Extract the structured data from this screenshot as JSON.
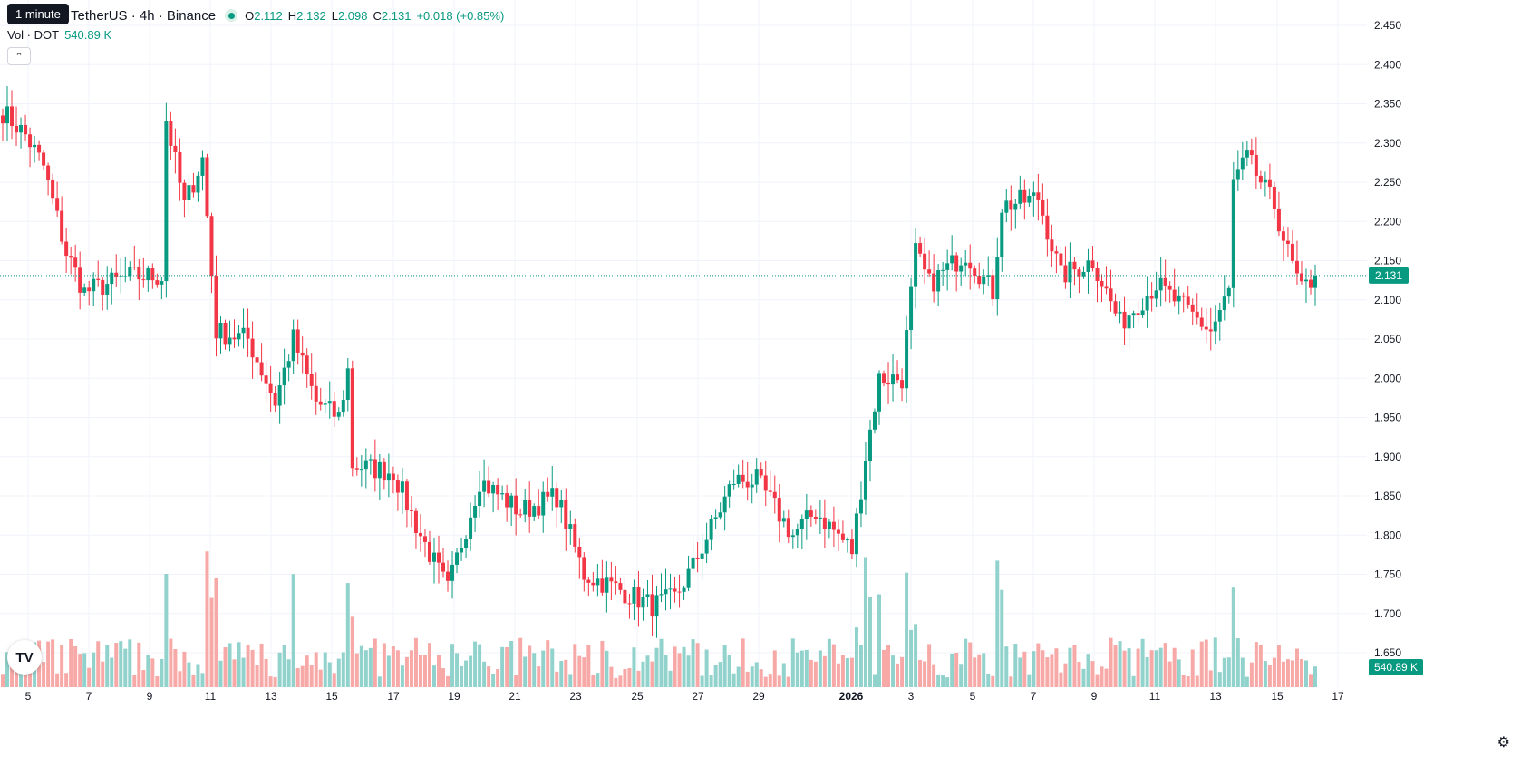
{
  "tooltip": "1 minute",
  "header": {
    "symbol_text": "TetherUS · 4h · Binance",
    "ohlc": [
      {
        "k": "O",
        "v": "2.112"
      },
      {
        "k": "H",
        "v": "2.132"
      },
      {
        "k": "L",
        "v": "2.098"
      },
      {
        "k": "C",
        "v": "2.131"
      }
    ],
    "change": "+0.018 (+0.85%)"
  },
  "volume": {
    "label": "Vol · DOT",
    "value": "540.89 K",
    "badge": "540.89 K"
  },
  "collapse_icon": "chevron-up-icon",
  "logo_text": "TV",
  "settings_icon": "gear-icon",
  "colors": {
    "up": "#089981",
    "down": "#f23645",
    "up_vol": "#92d2cc",
    "down_vol": "#f7a9a7",
    "grid": "#f0f3fa"
  },
  "chart_data": {
    "type": "candlestick",
    "y_ticks": [
      "2.450",
      "2.400",
      "2.350",
      "2.300",
      "2.250",
      "2.200",
      "2.150",
      "2.100",
      "2.050",
      "2.000",
      "1.950",
      "1.900",
      "1.850",
      "1.800",
      "1.750",
      "1.700",
      "1.650"
    ],
    "ylim": [
      1.625,
      2.465
    ],
    "x_ticks": [
      "5",
      "7",
      "9",
      "11",
      "13",
      "15",
      "17",
      "19",
      "21",
      "23",
      "25",
      "27",
      "29",
      "2026",
      "3",
      "5",
      "7",
      "9",
      "11",
      "13",
      "15",
      "17"
    ],
    "last_price": "2.131",
    "last_price_value": 2.131,
    "anchors": [
      [
        0,
        2.34
      ],
      [
        5,
        2.31
      ],
      [
        9,
        2.27
      ],
      [
        14,
        2.16
      ],
      [
        18,
        2.11
      ],
      [
        28,
        2.13
      ],
      [
        35,
        2.13
      ],
      [
        36,
        2.33
      ],
      [
        40,
        2.22
      ],
      [
        44,
        2.28
      ],
      [
        47,
        2.06
      ],
      [
        54,
        2.05
      ],
      [
        60,
        1.97
      ],
      [
        64,
        2.05
      ],
      [
        69,
        1.97
      ],
      [
        74,
        1.95
      ],
      [
        76,
        2.01
      ],
      [
        77,
        1.89
      ],
      [
        86,
        1.88
      ],
      [
        92,
        1.8
      ],
      [
        98,
        1.73
      ],
      [
        105,
        1.87
      ],
      [
        114,
        1.83
      ],
      [
        122,
        1.85
      ],
      [
        128,
        1.75
      ],
      [
        136,
        1.73
      ],
      [
        143,
        1.71
      ],
      [
        148,
        1.72
      ],
      [
        152,
        1.76
      ],
      [
        161,
        1.87
      ],
      [
        166,
        1.87
      ],
      [
        174,
        1.8
      ],
      [
        179,
        1.83
      ],
      [
        184,
        1.8
      ],
      [
        187,
        1.78
      ],
      [
        190,
        1.9
      ],
      [
        193,
        2.0
      ],
      [
        198,
        2.0
      ],
      [
        201,
        2.16
      ],
      [
        204,
        2.12
      ],
      [
        212,
        2.16
      ],
      [
        218,
        2.11
      ],
      [
        220,
        2.22
      ],
      [
        228,
        2.23
      ],
      [
        233,
        2.13
      ],
      [
        240,
        2.15
      ],
      [
        246,
        2.07
      ],
      [
        254,
        2.12
      ],
      [
        260,
        2.09
      ],
      [
        266,
        2.06
      ],
      [
        270,
        2.11
      ],
      [
        271,
        2.25
      ],
      [
        274,
        2.28
      ],
      [
        280,
        2.22
      ],
      [
        283,
        2.16
      ],
      [
        286,
        2.11
      ],
      [
        289,
        2.131
      ]
    ]
  }
}
